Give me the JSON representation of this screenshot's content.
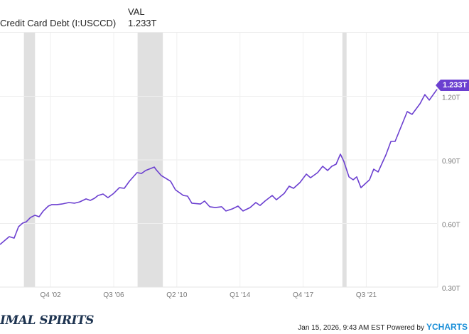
{
  "header": {
    "col_label": "VAL",
    "series_name": "Credit Card Debt (I:USCCD)",
    "series_value": "1.233T"
  },
  "footer": {
    "logo": "ANIMAL SPIRITS",
    "timestamp": "Jan 15, 2026, 9:43 AM EST Powered by",
    "brand": "YCHARTS"
  },
  "chart_data": {
    "type": "line",
    "title": "",
    "xlabel": "",
    "ylabel": "",
    "ylim": [
      0.3,
      1.25
    ],
    "xlim": [
      1999.75,
      2025.7
    ],
    "grid": true,
    "line_color": "#6b3fd0",
    "recession_color": "#e0e0e0",
    "last_value_label": "1.233T",
    "y_ticks": [
      {
        "v": 0.3,
        "label": "0.30T"
      },
      {
        "v": 0.6,
        "label": "0.60T"
      },
      {
        "v": 0.9,
        "label": "0.90T"
      },
      {
        "v": 1.2,
        "label": "1.20T"
      }
    ],
    "x_ticks": [
      {
        "v": 2002.75,
        "label": "Q4 '02"
      },
      {
        "v": 2006.5,
        "label": "Q3 '06"
      },
      {
        "v": 2010.25,
        "label": "Q2 '10"
      },
      {
        "v": 2014.0,
        "label": "Q1 '14"
      },
      {
        "v": 2017.75,
        "label": "Q4 '17"
      },
      {
        "v": 2021.5,
        "label": "Q3 '21"
      }
    ],
    "recessions": [
      [
        2001.17,
        2001.83
      ],
      [
        2007.92,
        2009.42
      ],
      [
        2020.08,
        2020.33
      ]
    ],
    "series": [
      {
        "name": "Credit Card Debt (I:USCCD)",
        "x": [
          1999.75,
          2000.3,
          2000.59,
          2000.85,
          2001.1,
          2001.31,
          2001.56,
          2001.82,
          2002.07,
          2002.32,
          2002.62,
          2002.83,
          2003.13,
          2003.42,
          2003.84,
          2004.18,
          2004.48,
          2004.86,
          2005.11,
          2005.36,
          2005.57,
          2005.87,
          2006.16,
          2006.5,
          2006.84,
          2007.13,
          2007.43,
          2007.89,
          2008.15,
          2008.4,
          2008.91,
          2009.03,
          2009.33,
          2009.88,
          2010.17,
          2010.64,
          2010.89,
          2011.14,
          2011.65,
          2011.9,
          2012.2,
          2012.53,
          2012.91,
          2013.17,
          2013.55,
          2013.88,
          2014.18,
          2014.6,
          2014.94,
          2015.19,
          2015.49,
          2015.91,
          2016.16,
          2016.63,
          2016.92,
          2017.18,
          2017.56,
          2017.94,
          2018.19,
          2018.61,
          2018.91,
          2019.2,
          2019.45,
          2019.71,
          2019.96,
          2020.17,
          2020.47,
          2020.72,
          2020.93,
          2021.18,
          2021.69,
          2021.94,
          2022.2,
          2022.66,
          2022.96,
          2023.21,
          2023.93,
          2024.22,
          2024.69,
          2024.98,
          2025.24,
          2025.7
        ],
        "y": [
          0.501,
          0.538,
          0.531,
          0.585,
          0.602,
          0.608,
          0.628,
          0.639,
          0.632,
          0.659,
          0.682,
          0.689,
          0.689,
          0.692,
          0.699,
          0.696,
          0.702,
          0.716,
          0.709,
          0.719,
          0.732,
          0.739,
          0.722,
          0.742,
          0.769,
          0.766,
          0.799,
          0.84,
          0.836,
          0.85,
          0.866,
          0.853,
          0.826,
          0.799,
          0.759,
          0.732,
          0.729,
          0.696,
          0.692,
          0.706,
          0.679,
          0.675,
          0.679,
          0.659,
          0.669,
          0.682,
          0.659,
          0.675,
          0.699,
          0.685,
          0.706,
          0.732,
          0.712,
          0.742,
          0.776,
          0.766,
          0.793,
          0.833,
          0.816,
          0.84,
          0.87,
          0.85,
          0.87,
          0.88,
          0.927,
          0.893,
          0.82,
          0.806,
          0.82,
          0.769,
          0.806,
          0.856,
          0.843,
          0.923,
          0.987,
          0.987,
          1.128,
          1.115,
          1.165,
          1.208,
          1.182,
          1.233
        ]
      }
    ]
  }
}
